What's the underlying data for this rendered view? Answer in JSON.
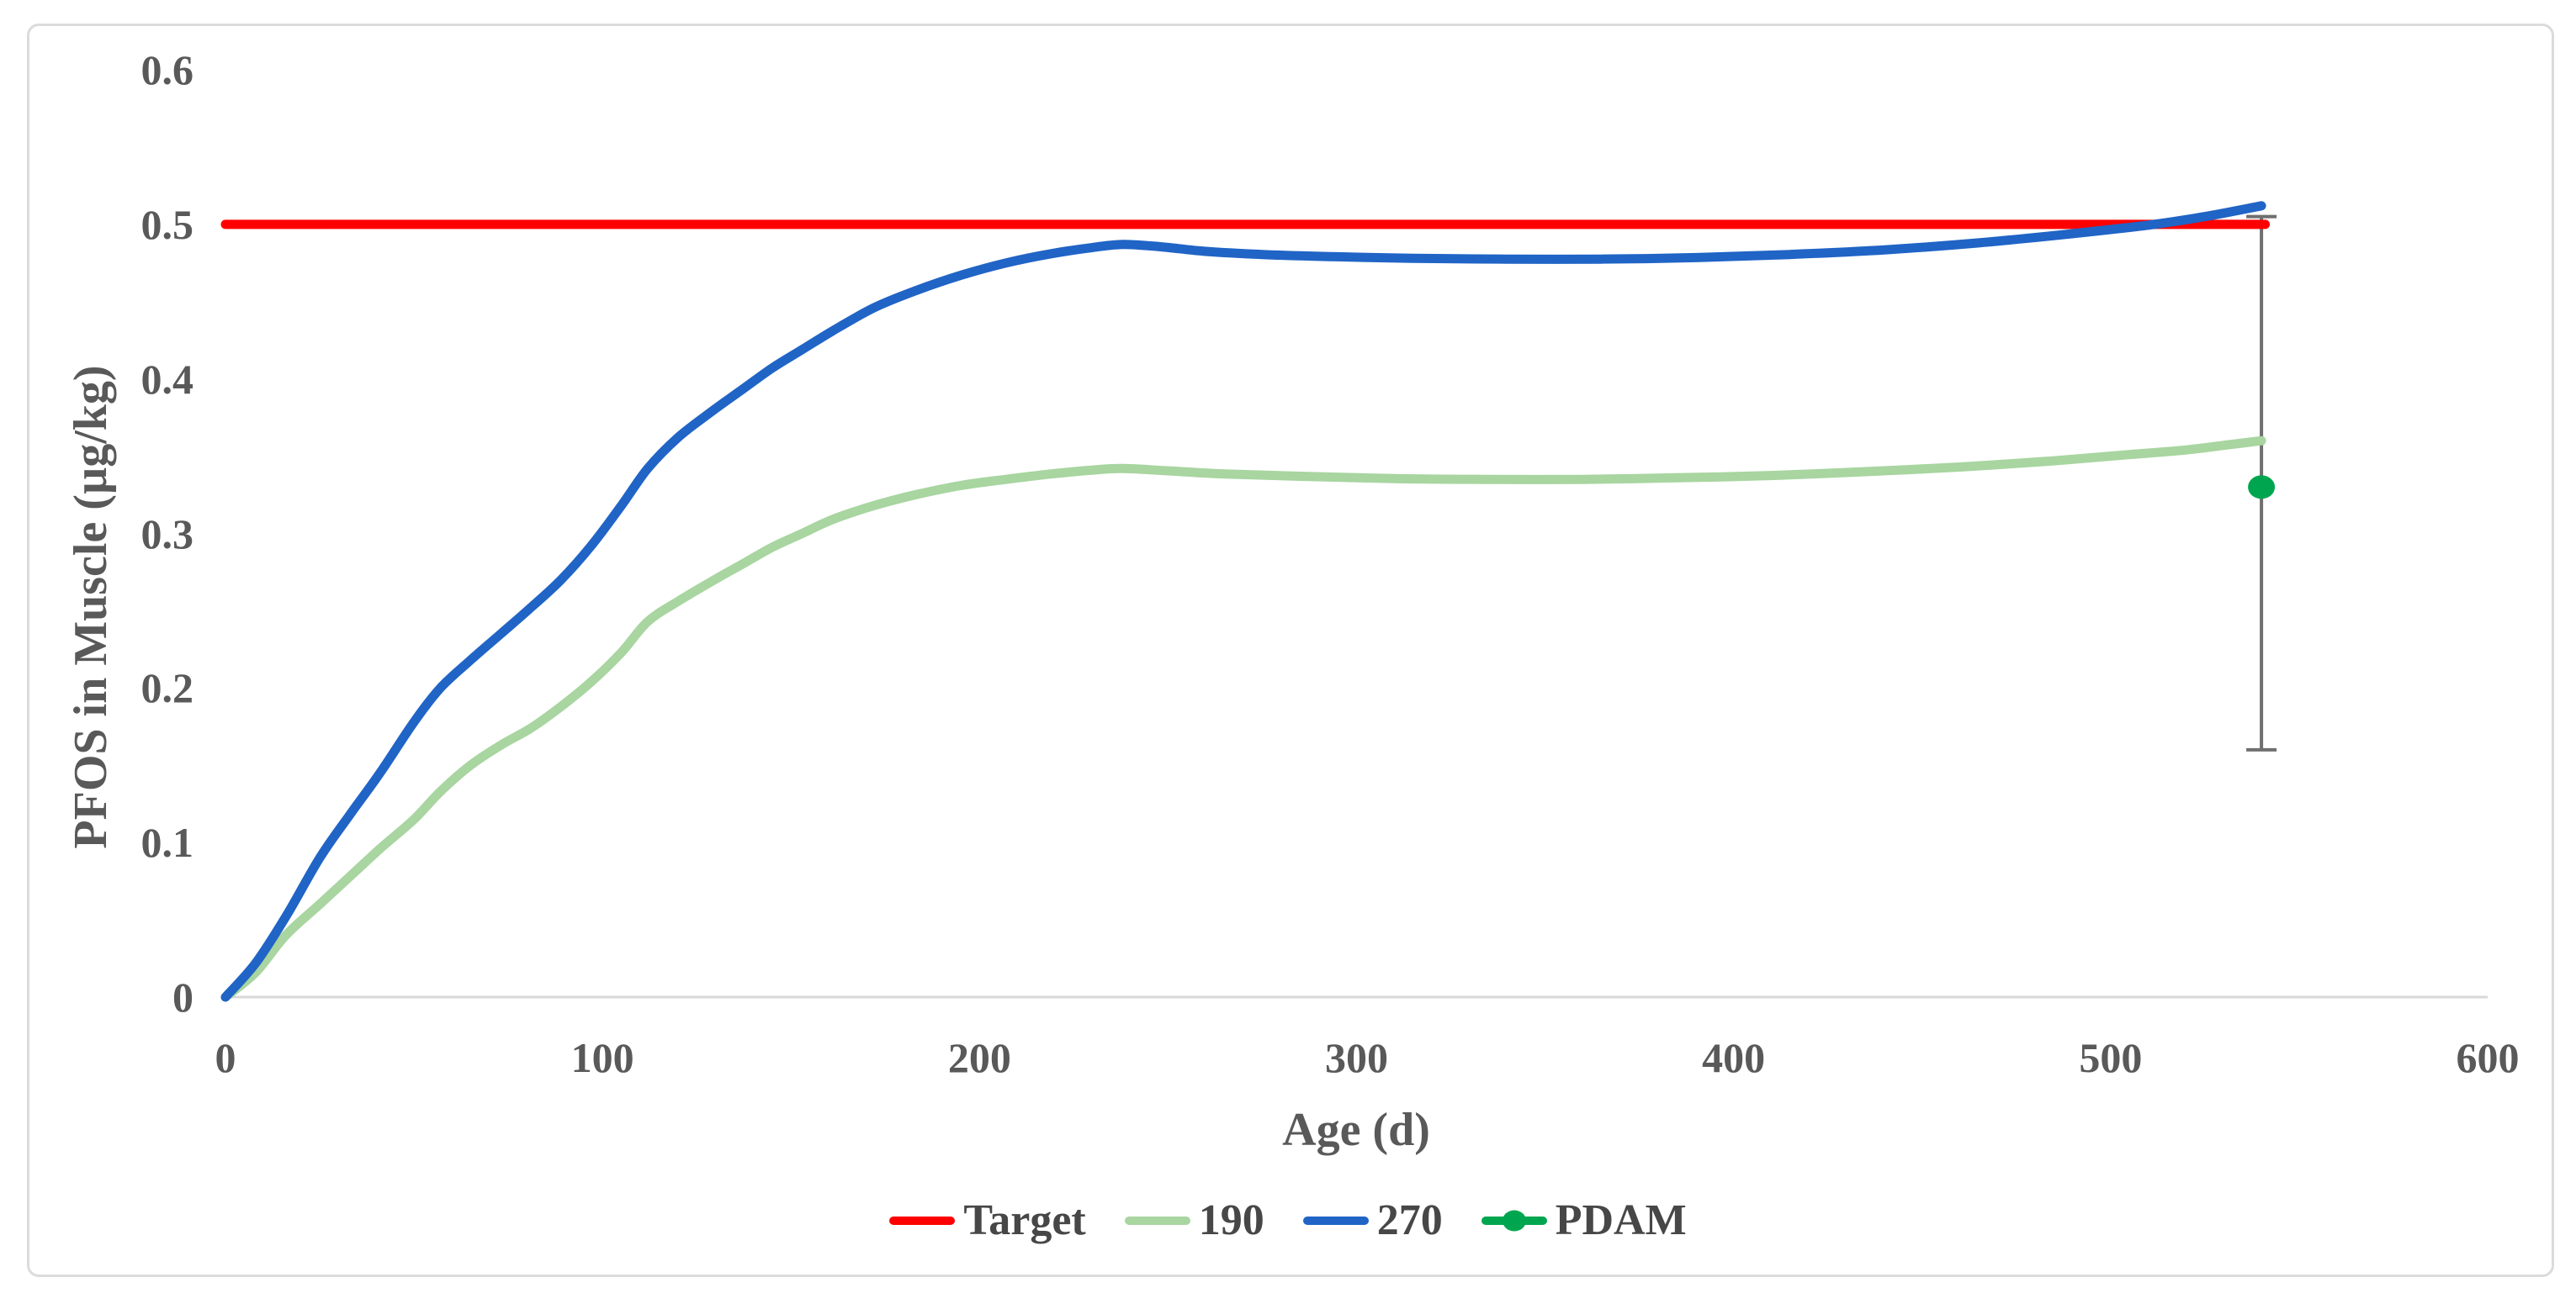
{
  "chart_data": {
    "type": "line",
    "title": "",
    "grid": false,
    "legend_position": "bottom",
    "x_axis": {
      "label": "Age (d)",
      "range": [
        0,
        600
      ],
      "ticks": [
        0,
        100,
        200,
        300,
        400,
        500,
        600
      ],
      "tick_labels": [
        "0",
        "100",
        "200",
        "300",
        "400",
        "500",
        "600"
      ]
    },
    "y_axis": {
      "label": "PFOS in Muscle (µg/kg)",
      "range": [
        0,
        0.6
      ],
      "ticks": [
        0,
        0.1,
        0.2,
        0.3,
        0.4,
        0.5,
        0.6
      ],
      "tick_labels": [
        "0",
        "0.1",
        "0.2",
        "0.3",
        "0.4",
        "0.5",
        "0.6"
      ]
    },
    "series": [
      {
        "name": "Target",
        "color": "#FF0000",
        "stroke_width": 11,
        "points": [
          [
            0,
            0.5
          ],
          [
            541,
            0.5
          ]
        ]
      },
      {
        "name": "190",
        "color": "#A8D5A0",
        "stroke_width": 11,
        "points": [
          [
            0,
            0
          ],
          [
            8,
            0.016
          ],
          [
            16,
            0.04
          ],
          [
            25,
            0.06
          ],
          [
            33,
            0.078
          ],
          [
            41,
            0.096
          ],
          [
            50,
            0.115
          ],
          [
            57,
            0.133
          ],
          [
            65,
            0.15
          ],
          [
            73,
            0.163
          ],
          [
            81,
            0.174
          ],
          [
            89,
            0.188
          ],
          [
            97,
            0.204
          ],
          [
            105,
            0.223
          ],
          [
            112,
            0.243
          ],
          [
            120,
            0.256
          ],
          [
            129,
            0.269
          ],
          [
            137,
            0.28
          ],
          [
            145,
            0.291
          ],
          [
            153,
            0.3
          ],
          [
            161,
            0.309
          ],
          [
            172,
            0.318
          ],
          [
            183,
            0.325
          ],
          [
            195,
            0.331
          ],
          [
            207,
            0.335
          ],
          [
            219,
            0.3385
          ],
          [
            230,
            0.341
          ],
          [
            238,
            0.342
          ],
          [
            250,
            0.3405
          ],
          [
            265,
            0.3385
          ],
          [
            285,
            0.337
          ],
          [
            310,
            0.3355
          ],
          [
            335,
            0.335
          ],
          [
            360,
            0.335
          ],
          [
            385,
            0.336
          ],
          [
            410,
            0.3375
          ],
          [
            435,
            0.34
          ],
          [
            460,
            0.343
          ],
          [
            485,
            0.347
          ],
          [
            505,
            0.351
          ],
          [
            520,
            0.354
          ],
          [
            530,
            0.357
          ],
          [
            540,
            0.36
          ]
        ]
      },
      {
        "name": "270",
        "color": "#2064C6",
        "stroke_width": 11,
        "points": [
          [
            0,
            0
          ],
          [
            8,
            0.022
          ],
          [
            16,
            0.052
          ],
          [
            25,
            0.09
          ],
          [
            33,
            0.118
          ],
          [
            41,
            0.145
          ],
          [
            50,
            0.178
          ],
          [
            57,
            0.2
          ],
          [
            65,
            0.218
          ],
          [
            73,
            0.235
          ],
          [
            81,
            0.252
          ],
          [
            89,
            0.27
          ],
          [
            97,
            0.292
          ],
          [
            105,
            0.318
          ],
          [
            112,
            0.342
          ],
          [
            120,
            0.362
          ],
          [
            129,
            0.379
          ],
          [
            137,
            0.393
          ],
          [
            145,
            0.407
          ],
          [
            153,
            0.419
          ],
          [
            161,
            0.431
          ],
          [
            172,
            0.446
          ],
          [
            183,
            0.457
          ],
          [
            195,
            0.467
          ],
          [
            207,
            0.475
          ],
          [
            219,
            0.481
          ],
          [
            230,
            0.485
          ],
          [
            238,
            0.487
          ],
          [
            248,
            0.4855
          ],
          [
            260,
            0.4825
          ],
          [
            275,
            0.4805
          ],
          [
            295,
            0.479
          ],
          [
            315,
            0.478
          ],
          [
            340,
            0.4775
          ],
          [
            365,
            0.4775
          ],
          [
            390,
            0.4785
          ],
          [
            415,
            0.4805
          ],
          [
            440,
            0.4835
          ],
          [
            465,
            0.488
          ],
          [
            490,
            0.494
          ],
          [
            510,
            0.4995
          ],
          [
            525,
            0.505
          ],
          [
            540,
            0.512
          ]
        ]
      }
    ],
    "pdam_point": {
      "name": "PDAM",
      "color": "#00A64F",
      "x": 540,
      "y": 0.33,
      "error_low": 0.16,
      "error_high": 0.505
    }
  },
  "legend": {
    "items": [
      {
        "label": "Target",
        "color": "#FF0000",
        "marker": "line"
      },
      {
        "label": "190",
        "color": "#A8D5A0",
        "marker": "line"
      },
      {
        "label": "270",
        "color": "#2064C6",
        "marker": "line"
      },
      {
        "label": "PDAM",
        "color": "#00A64F",
        "marker": "line-dot"
      }
    ]
  },
  "colors": {
    "axis_line": "#D9D9D9",
    "error_bar": "#6F6F6F",
    "tick_text": "#595959",
    "legend_text": "#474747"
  }
}
